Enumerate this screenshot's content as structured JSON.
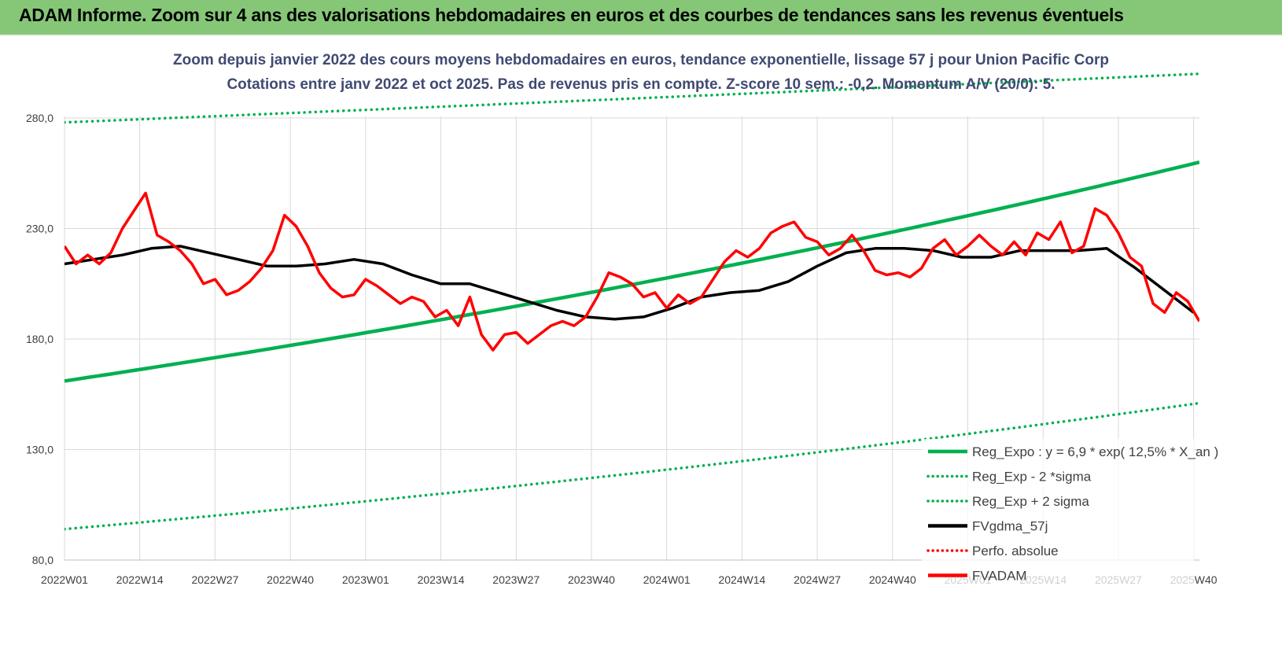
{
  "header": {
    "title": "ADAM Informe. Zoom sur 4 ans des valorisations hebdomadaires en euros et des courbes de tendances sans les revenus éventuels"
  },
  "chart_data": {
    "type": "line",
    "title": "Zoom depuis janvier 2022 des cours moyens hebdomadaires en euros, tendance exponentielle, lissage 57 j pour Union Pacific Corp",
    "subtitle": "Cotations entre janv 2022 et oct 2025. Pas de revenus pris en compte. Z-score 10 sem.: -0,2. Momentum A/V (20/0): 5.",
    "xlabel": "",
    "ylabel": "",
    "ylim": [
      80,
      280
    ],
    "yticks": [
      "280,0",
      "230,0",
      "180,0",
      "130,0",
      "80,0"
    ],
    "x_tick_labels": [
      "2022W01",
      "2022W14",
      "2022W27",
      "2022W40",
      "2023W01",
      "2023W14",
      "2023W27",
      "2023W40",
      "2024W01",
      "2024W14",
      "2024W27",
      "2024W40",
      "2025W01",
      "2025W14",
      "2025W27",
      "2025W40"
    ],
    "weeks_total": 196,
    "legend": [
      {
        "name": "Reg_Expo : y = 6,9 * exp( 12,5% * X_an )",
        "color": "#00b050",
        "style": "solid"
      },
      {
        "name": "Reg_Exp - 2 *sigma",
        "color": "#00b050",
        "style": "dotted"
      },
      {
        "name": "Reg_Exp + 2 sigma",
        "color": "#00b050",
        "style": "dotted"
      },
      {
        "name": "FVgdma_57j",
        "color": "#000000",
        "style": "solid"
      },
      {
        "name": "Perfo. absolue",
        "color": "#ff0000",
        "style": "dotted"
      },
      {
        "name": "FVADAM",
        "color": "#ff0000",
        "style": "solid"
      }
    ],
    "series": [
      {
        "name": "Reg_Expo",
        "start": 161,
        "end": 260
      },
      {
        "name": "Reg_Exp - 2 *sigma",
        "start": 94,
        "end": 151
      },
      {
        "name": "Reg_Exp + 2 sigma",
        "start": 278,
        "end": 300
      },
      {
        "name": "FVgdma_57j",
        "x": [
          0,
          5,
          10,
          15,
          20,
          25,
          30,
          35,
          40,
          45,
          50,
          55,
          60,
          65,
          70,
          75,
          80,
          85,
          90,
          95,
          100,
          105,
          110,
          115,
          120,
          125,
          130,
          135,
          140,
          145,
          150,
          155,
          160,
          165,
          170,
          175,
          180,
          185,
          190,
          195
        ],
        "values": [
          214,
          216,
          218,
          221,
          222,
          219,
          216,
          213,
          213,
          214,
          216,
          214,
          209,
          205,
          205,
          201,
          197,
          193,
          190,
          189,
          190,
          194,
          199,
          201,
          202,
          206,
          213,
          219,
          221,
          221,
          220,
          217,
          217,
          220,
          220,
          220,
          221,
          212,
          202,
          192
        ]
      },
      {
        "name": "FVADAM",
        "x": [
          0,
          2,
          4,
          6,
          8,
          10,
          12,
          14,
          16,
          18,
          20,
          22,
          24,
          26,
          28,
          30,
          32,
          34,
          36,
          38,
          40,
          42,
          44,
          46,
          48,
          50,
          52,
          54,
          56,
          58,
          60,
          62,
          64,
          66,
          68,
          70,
          72,
          74,
          76,
          78,
          80,
          82,
          84,
          86,
          88,
          90,
          92,
          94,
          96,
          98,
          100,
          102,
          104,
          106,
          108,
          110,
          112,
          114,
          116,
          118,
          120,
          122,
          124,
          126,
          128,
          130,
          132,
          134,
          136,
          138,
          140,
          142,
          144,
          146,
          148,
          150,
          152,
          154,
          156,
          158,
          160,
          162,
          164,
          166,
          168,
          170,
          172,
          174,
          176,
          178,
          180,
          182,
          184,
          186,
          188,
          190,
          192,
          194,
          196
        ],
        "values": [
          222,
          214,
          218,
          214,
          219,
          230,
          238,
          246,
          227,
          224,
          220,
          214,
          205,
          207,
          200,
          202,
          206,
          212,
          220,
          236,
          231,
          222,
          210,
          203,
          199,
          200,
          207,
          204,
          200,
          196,
          199,
          197,
          190,
          193,
          186,
          199,
          182,
          175,
          182,
          183,
          178,
          182,
          186,
          188,
          186,
          190,
          199,
          210,
          208,
          205,
          199,
          201,
          194,
          200,
          196,
          199,
          207,
          215,
          220,
          217,
          221,
          228,
          231,
          233,
          226,
          224,
          218,
          221,
          227,
          220,
          211,
          209,
          210,
          208,
          212,
          221,
          225,
          218,
          222,
          227,
          222,
          218,
          224,
          218,
          228,
          225,
          233,
          219,
          222,
          239,
          236,
          228,
          217,
          213,
          196,
          192,
          201,
          197,
          188
        ]
      }
    ]
  }
}
